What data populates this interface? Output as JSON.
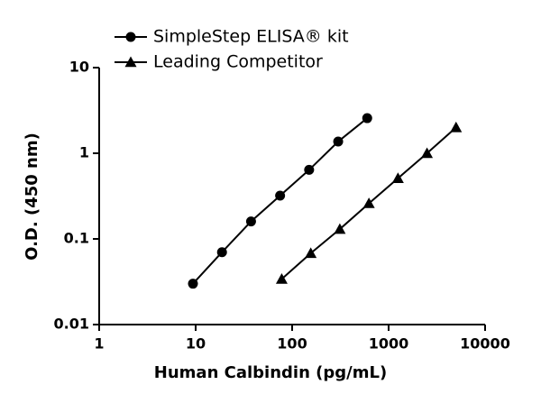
{
  "chart_data": {
    "type": "line",
    "xlabel": "Human Calbindin (pg/mL)",
    "ylabel": "O.D. (450 nm)",
    "xscale": "log",
    "yscale": "log",
    "xlim": [
      1,
      10000
    ],
    "xticks": [
      1,
      10,
      100,
      1000,
      10000
    ],
    "ylim": [
      0.01,
      10
    ],
    "yticks": [
      0.01,
      0.1,
      1,
      10
    ],
    "legend": "top-left",
    "series": [
      {
        "name": "SimpleStep ELISA® kit",
        "color": "#000000",
        "marker": "circle",
        "x": [
          9.375,
          18.75,
          37.5,
          75,
          150,
          300,
          600
        ],
        "values": [
          0.03,
          0.07,
          0.16,
          0.32,
          0.64,
          1.37,
          2.57
        ]
      },
      {
        "name": "Leading Competitor",
        "color": "#000000",
        "marker": "triangle",
        "x": [
          78,
          156,
          312,
          625,
          1250,
          2500,
          5000
        ],
        "values": [
          0.034,
          0.068,
          0.13,
          0.26,
          0.51,
          1.0,
          2.0
        ]
      }
    ]
  }
}
